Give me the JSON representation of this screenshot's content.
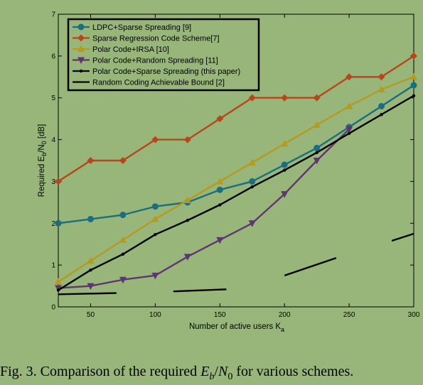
{
  "caption": {
    "prefix": "Fig. 3.  Comparison of the required ",
    "var_base": "E",
    "var_sub1": "b",
    "slash": "/",
    "var_n": "N",
    "var_sub2": "0",
    "suffix": " for various schemes."
  },
  "chart_data": {
    "type": "line",
    "xlabel": "Number of active users K",
    "xlabel_sub": "a",
    "ylabel": "Required E",
    "ylabel_sub1": "b",
    "ylabel_mid": "/N",
    "ylabel_sub2": "0",
    "ylabel_suffix": " [dB]",
    "xlim": [
      25,
      300
    ],
    "ylim": [
      0,
      7
    ],
    "x_ticks": [
      50,
      100,
      150,
      200,
      250,
      300
    ],
    "y_ticks": [
      0,
      1,
      2,
      3,
      4,
      5,
      6,
      7
    ],
    "grid": false,
    "legend_position": "top-left",
    "series": [
      {
        "name": "LDPC+Sparse Spreading [9]",
        "color": "#1b6e7e",
        "marker": "circle",
        "x": [
          25,
          50,
          75,
          100,
          125,
          150,
          175,
          200,
          225,
          250,
          275,
          300
        ],
        "y": [
          2.0,
          2.1,
          2.2,
          2.4,
          2.5,
          2.8,
          3.0,
          3.4,
          3.8,
          4.3,
          4.8,
          5.3
        ]
      },
      {
        "name": "Sparse Regression Code Scheme[7]",
        "color": "#b5471a",
        "marker": "diamond",
        "x": [
          25,
          50,
          75,
          100,
          125,
          150,
          175,
          200,
          225,
          250,
          275,
          300
        ],
        "y": [
          3.0,
          3.5,
          3.5,
          4.0,
          4.0,
          4.5,
          5.0,
          5.0,
          5.0,
          5.5,
          5.5,
          6.0
        ]
      },
      {
        "name": "Polar Code+IRSA [10]",
        "color": "#b59a22",
        "marker": "triangle-up",
        "x": [
          25,
          50,
          75,
          100,
          125,
          150,
          175,
          200,
          225,
          250,
          275,
          300
        ],
        "y": [
          0.6,
          1.1,
          1.6,
          2.1,
          2.55,
          3.0,
          3.45,
          3.9,
          4.35,
          4.8,
          5.2,
          5.5
        ]
      },
      {
        "name": "Polar Code+Random Spreading [11]",
        "color": "#5e3570",
        "marker": "triangle-down",
        "x": [
          25,
          50,
          75,
          100,
          125,
          150,
          175,
          200,
          225,
          250
        ],
        "y": [
          0.45,
          0.5,
          0.65,
          0.75,
          1.2,
          1.6,
          2.0,
          2.7,
          3.5,
          4.25
        ]
      },
      {
        "name": "Polar Code+Sparse Spreading (this paper)",
        "color": "#000000",
        "marker": "dot",
        "x": [
          25,
          50,
          75,
          100,
          125,
          150,
          175,
          200,
          225,
          250,
          275,
          300
        ],
        "y": [
          0.4,
          0.88,
          1.26,
          1.73,
          2.07,
          2.44,
          2.87,
          3.27,
          3.69,
          4.15,
          4.6,
          5.05
        ]
      },
      {
        "name": "Random Coding Achievable Bound [2]",
        "color": "#000000",
        "marker": "none",
        "segments": [
          {
            "x": [
              25,
              70
            ],
            "y": [
              0.3,
              0.33
            ]
          },
          {
            "x": [
              114,
              155
            ],
            "y": [
              0.37,
              0.42
            ]
          },
          {
            "x": [
              200,
              240
            ],
            "y": [
              0.75,
              1.17
            ]
          },
          {
            "x": [
              283,
              300
            ],
            "y": [
              1.58,
              1.75
            ]
          }
        ]
      }
    ]
  }
}
